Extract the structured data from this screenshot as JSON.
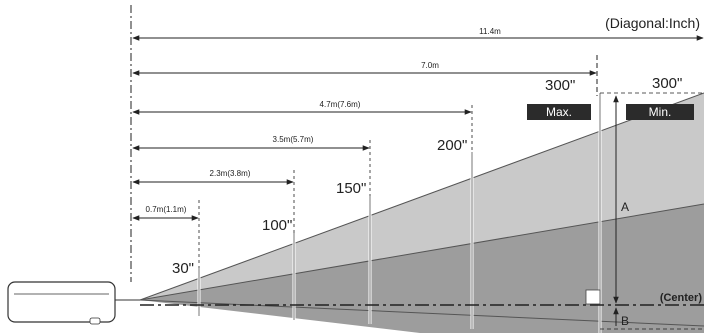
{
  "diagram": {
    "units_note": "(Diagonal:Inch)",
    "distances": [
      {
        "label": "11.4m"
      },
      {
        "label": "7.0m"
      },
      {
        "label": "4.7m(7.6m)"
      },
      {
        "label": "3.5m(5.7m)"
      },
      {
        "label": "2.3m(3.8m)"
      },
      {
        "label": "0.7m(1.1m)"
      }
    ],
    "screen_sizes": [
      {
        "label": "30\""
      },
      {
        "label": "100\""
      },
      {
        "label": "150\""
      },
      {
        "label": "200\""
      },
      {
        "label": "300\""
      }
    ],
    "min_screen_size": "300\"",
    "max_label": "Max.",
    "min_label": "Min.",
    "dimension_a": "A",
    "dimension_b": "B",
    "center_label": "(Center)",
    "colors": {
      "upper_beam": "#c9c9c9",
      "lower_beam": "#9d9d9d",
      "line": "#222222",
      "tag_bg": "#2b2b2b"
    }
  }
}
